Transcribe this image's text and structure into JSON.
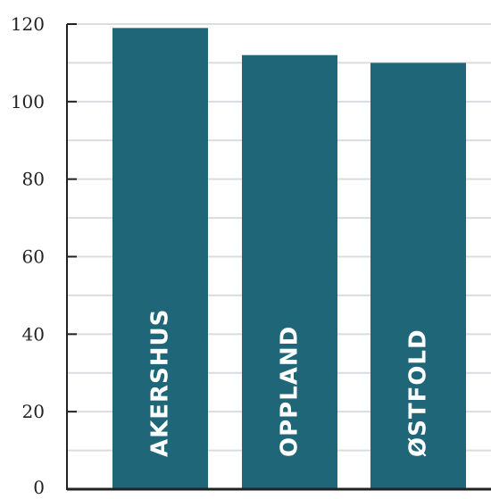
{
  "chart_data": {
    "type": "bar",
    "categories": [
      "AKERSHUS",
      "OPPLAND",
      "ØSTFOLD"
    ],
    "values": [
      119,
      112,
      110
    ],
    "title": "",
    "xlabel": "",
    "ylabel": "",
    "ylim": [
      0,
      120
    ],
    "yticks": [
      0,
      20,
      40,
      60,
      80,
      100,
      120
    ],
    "grid": "horizontal, every 10",
    "bar_color": "#1f6678",
    "grid_color": "#dcdce0",
    "axis_color": "#222222"
  }
}
